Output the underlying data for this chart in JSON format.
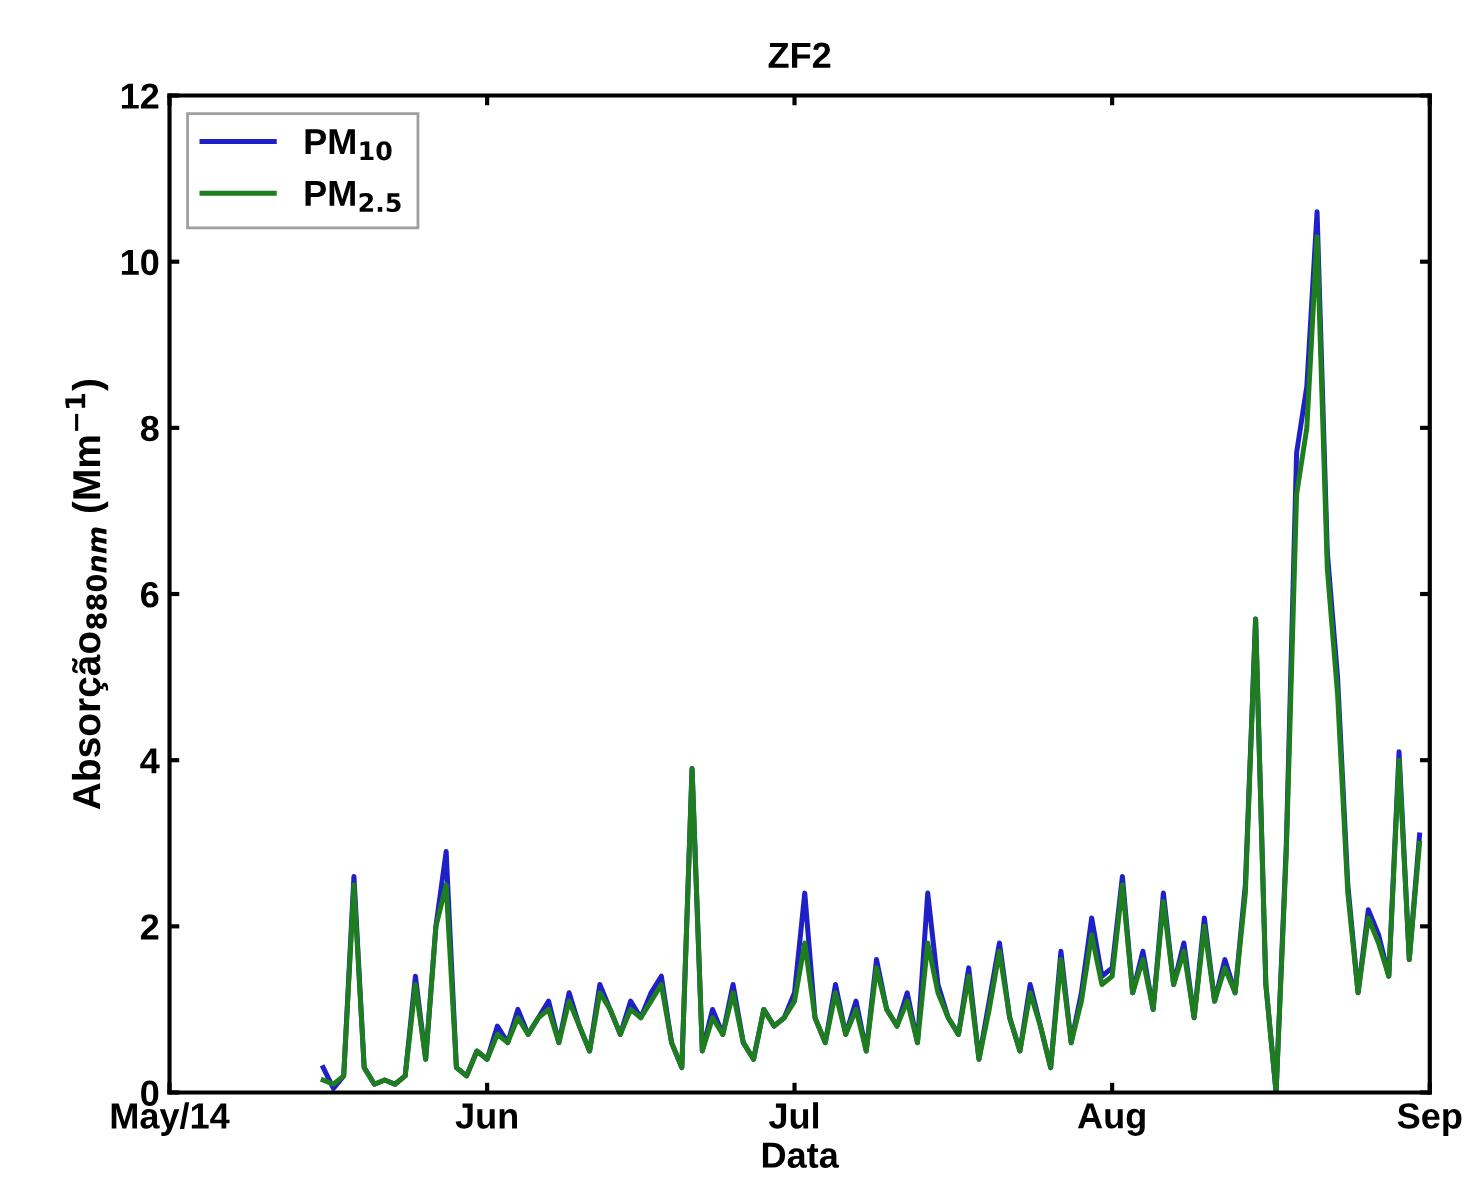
{
  "chart_data": {
    "type": "line",
    "title": "ZF2",
    "xlabel": "Data",
    "ylabel": "Absorção$_{880nm}$ (Mm$^{−1}$)",
    "x": [
      "2014-05-16",
      "2014-05-17",
      "2014-05-18",
      "2014-05-19",
      "2014-05-20",
      "2014-05-21",
      "2014-05-22",
      "2014-05-23",
      "2014-05-24",
      "2014-05-25",
      "2014-05-26",
      "2014-05-27",
      "2014-05-28",
      "2014-05-29",
      "2014-05-30",
      "2014-05-31",
      "2014-06-01",
      "2014-06-02",
      "2014-06-03",
      "2014-06-04",
      "2014-06-05",
      "2014-06-06",
      "2014-06-07",
      "2014-06-08",
      "2014-06-09",
      "2014-06-10",
      "2014-06-11",
      "2014-06-12",
      "2014-06-13",
      "2014-06-14",
      "2014-06-15",
      "2014-06-16",
      "2014-06-17",
      "2014-06-18",
      "2014-06-19",
      "2014-06-20",
      "2014-06-21",
      "2014-06-22",
      "2014-06-23",
      "2014-06-24",
      "2014-06-25",
      "2014-06-26",
      "2014-06-27",
      "2014-06-28",
      "2014-06-29",
      "2014-06-30",
      "2014-07-01",
      "2014-07-02",
      "2014-07-03",
      "2014-07-04",
      "2014-07-05",
      "2014-07-06",
      "2014-07-07",
      "2014-07-08",
      "2014-07-09",
      "2014-07-10",
      "2014-07-11",
      "2014-07-12",
      "2014-07-13",
      "2014-07-14",
      "2014-07-15",
      "2014-07-16",
      "2014-07-17",
      "2014-07-18",
      "2014-07-19",
      "2014-07-20",
      "2014-07-21",
      "2014-07-22",
      "2014-07-23",
      "2014-07-24",
      "2014-07-25",
      "2014-07-26",
      "2014-07-27",
      "2014-07-28",
      "2014-07-29",
      "2014-07-30",
      "2014-07-31",
      "2014-08-01",
      "2014-08-02",
      "2014-08-03",
      "2014-08-04",
      "2014-08-05",
      "2014-08-06",
      "2014-08-07",
      "2014-08-08",
      "2014-08-09",
      "2014-08-10",
      "2014-08-11",
      "2014-08-12",
      "2014-08-13",
      "2014-08-14",
      "2014-08-15",
      "2014-08-16",
      "2014-08-17",
      "2014-08-18",
      "2014-08-19",
      "2014-08-20",
      "2014-08-21",
      "2014-08-22",
      "2014-08-23",
      "2014-08-24",
      "2014-08-25",
      "2014-08-26",
      "2014-08-27",
      "2014-08-28",
      "2014-08-29",
      "2014-08-30",
      "2014-08-31"
    ],
    "series": [
      {
        "name": "PM$_{10}$",
        "color": "#2020c8",
        "values": [
          0.3,
          0.05,
          0.2,
          2.6,
          0.3,
          0.1,
          0.15,
          0.1,
          0.2,
          1.4,
          0.4,
          2.0,
          2.9,
          0.3,
          0.2,
          0.5,
          0.4,
          0.8,
          0.6,
          1.0,
          0.7,
          0.9,
          1.1,
          0.6,
          1.2,
          0.8,
          0.5,
          1.3,
          1.0,
          0.7,
          1.1,
          0.9,
          1.2,
          1.4,
          0.6,
          0.3,
          3.9,
          0.5,
          1.0,
          0.7,
          1.3,
          0.6,
          0.4,
          1.0,
          0.8,
          0.9,
          1.2,
          2.4,
          0.9,
          0.6,
          1.3,
          0.7,
          1.1,
          0.5,
          1.6,
          1.0,
          0.8,
          1.2,
          0.6,
          2.4,
          1.3,
          0.9,
          0.7,
          1.5,
          0.4,
          1.1,
          1.8,
          0.9,
          0.5,
          1.3,
          0.8,
          0.3,
          1.7,
          0.6,
          1.2,
          2.1,
          1.4,
          1.5,
          2.6,
          1.2,
          1.7,
          1.0,
          2.4,
          1.3,
          1.8,
          0.9,
          2.1,
          1.1,
          1.6,
          1.2,
          2.5,
          5.7,
          1.3,
          0.0,
          3.0,
          7.7,
          8.5,
          10.6,
          6.5,
          5.0,
          2.5,
          1.2,
          2.2,
          1.9,
          1.4,
          4.1,
          1.6,
          3.1
        ]
      },
      {
        "name": "PM$_{2.5}$",
        "color": "#1e7d1e",
        "values": [
          0.15,
          0.1,
          0.2,
          2.5,
          0.3,
          0.1,
          0.15,
          0.1,
          0.2,
          1.3,
          0.4,
          2.0,
          2.5,
          0.3,
          0.2,
          0.5,
          0.4,
          0.7,
          0.6,
          0.9,
          0.7,
          0.9,
          1.0,
          0.6,
          1.1,
          0.8,
          0.5,
          1.2,
          1.0,
          0.7,
          1.0,
          0.9,
          1.1,
          1.3,
          0.6,
          0.3,
          3.9,
          0.5,
          0.9,
          0.7,
          1.2,
          0.6,
          0.4,
          1.0,
          0.8,
          0.9,
          1.1,
          1.8,
          0.9,
          0.6,
          1.2,
          0.7,
          1.0,
          0.5,
          1.5,
          1.0,
          0.8,
          1.1,
          0.6,
          1.8,
          1.2,
          0.9,
          0.7,
          1.4,
          0.4,
          1.0,
          1.7,
          0.9,
          0.5,
          1.2,
          0.8,
          0.3,
          1.6,
          0.6,
          1.1,
          1.9,
          1.3,
          1.4,
          2.5,
          1.2,
          1.6,
          1.0,
          2.3,
          1.3,
          1.7,
          0.9,
          2.0,
          1.1,
          1.5,
          1.2,
          2.4,
          5.7,
          1.3,
          0.0,
          2.9,
          7.2,
          8.0,
          10.3,
          6.3,
          4.8,
          2.4,
          1.2,
          2.1,
          1.8,
          1.4,
          4.0,
          1.6,
          3.0
        ]
      }
    ],
    "xlim": [
      "2014-05-01",
      "2014-09-01"
    ],
    "xticks": [
      {
        "value": "2014-05-01",
        "label": "May/14"
      },
      {
        "value": "2014-06-01",
        "label": "Jun"
      },
      {
        "value": "2014-07-01",
        "label": "Jul"
      },
      {
        "value": "2014-08-01",
        "label": "Aug"
      },
      {
        "value": "2014-09-01",
        "label": "Sep"
      }
    ],
    "ylim": [
      0,
      12
    ],
    "yticks": [
      0,
      2,
      4,
      6,
      8,
      10,
      12
    ],
    "grid": false,
    "legend": "top left",
    "line_style": "solid",
    "marker": "none"
  }
}
